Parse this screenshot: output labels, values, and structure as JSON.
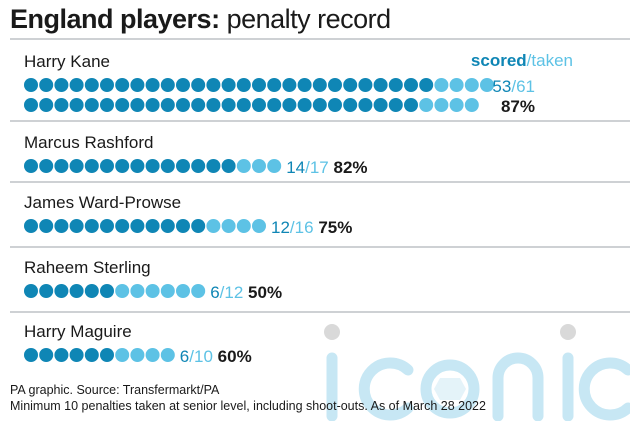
{
  "header": {
    "title_bold": "England players:",
    "title_light": "penalty record"
  },
  "legend": {
    "scored": "scored",
    "separator": "/",
    "taken": "taken"
  },
  "colors": {
    "scored": "#0f86b5",
    "missed": "#5dc2e5",
    "pct": "#1a1a1a",
    "divider": "#9ca3aa",
    "watermark": "#c7e7f4"
  },
  "chart_data": {
    "type": "dot-matrix",
    "title": "England players: penalty record",
    "legend": [
      "scored",
      "taken"
    ],
    "players": [
      {
        "name": "Harry Kane",
        "scored": 53,
        "taken": 61,
        "pct": "87%",
        "fraction_scored": "53",
        "fraction_taken": "61"
      },
      {
        "name": "Marcus Rashford",
        "scored": 14,
        "taken": 17,
        "pct": "82%",
        "fraction_scored": "14",
        "fraction_taken": "17"
      },
      {
        "name": "James Ward-Prowse",
        "scored": 12,
        "taken": 16,
        "pct": "75%",
        "fraction_scored": "12",
        "fraction_taken": "16"
      },
      {
        "name": "Raheem Sterling",
        "scored": 6,
        "taken": 12,
        "pct": "50%",
        "fraction_scored": "6",
        "fraction_taken": "12"
      },
      {
        "name": "Harry Maguire",
        "scored": 6,
        "taken": 10,
        "pct": "60%",
        "fraction_scored": "6",
        "fraction_taken": "10"
      }
    ]
  },
  "footer": {
    "source": "PA graphic. Source: Transfermarkt/PA",
    "note": "Minimum 10 penalties taken at senior level, including shoot-outs. As of March 28 2022"
  },
  "watermark": {
    "text": "iconic"
  }
}
